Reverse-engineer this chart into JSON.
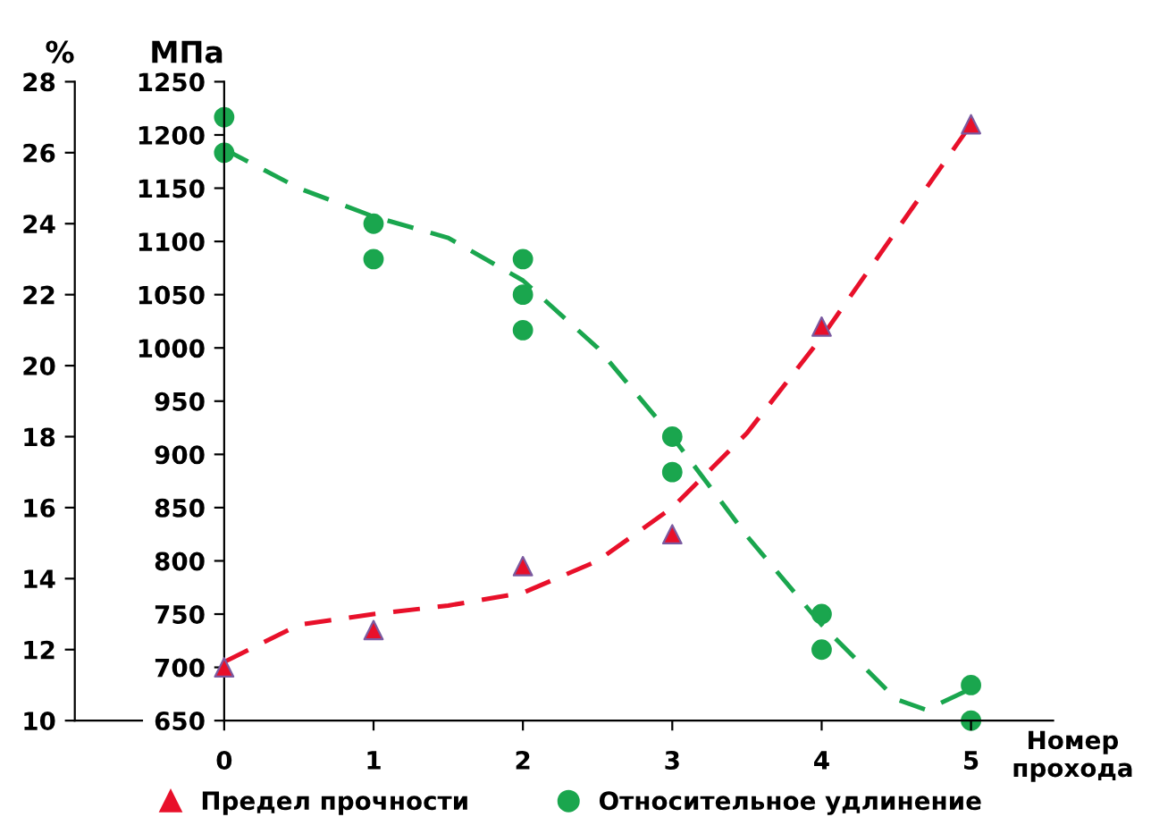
{
  "chart_data": {
    "type": "scatter",
    "xlabel": "Номер\nпрохода",
    "ylabel": "МПа",
    "y2label": "%",
    "xlim": [
      -1,
      5.55
    ],
    "xticks": [
      0,
      1,
      2,
      3,
      4,
      5
    ],
    "ylim": [
      650,
      1250
    ],
    "yticks": [
      650,
      700,
      750,
      800,
      850,
      900,
      950,
      1000,
      1050,
      1100,
      1150,
      1200,
      1250
    ],
    "y2lim": [
      10,
      28
    ],
    "y2ticks": [
      10,
      12,
      14,
      16,
      18,
      20,
      22,
      24,
      26,
      28
    ],
    "legend": "bottom",
    "grid": false,
    "series": [
      {
        "name": "Предел прочности",
        "marker": "triangle",
        "color": "#e8102a",
        "axis": "y",
        "x": [
          0,
          1,
          2,
          3,
          4,
          5
        ],
        "values": [
          700,
          735,
          795,
          825,
          1020,
          1210
        ]
      },
      {
        "name": "Относительное удлинение",
        "marker": "circle",
        "color": "#1aa64e",
        "axis": "y2",
        "x": [
          0,
          0,
          1,
          1,
          2,
          2,
          2,
          3,
          3,
          4,
          4,
          5,
          5
        ],
        "values": [
          27,
          26,
          24,
          23,
          23,
          22,
          21,
          18,
          17,
          13,
          12,
          11,
          10
        ]
      },
      {
        "type": "line",
        "line_style": "dashed",
        "color": "#e8102a",
        "axis": "y",
        "x": [
          0,
          0.5,
          1,
          1.5,
          2,
          2.5,
          3,
          3.5,
          4,
          4.5,
          5
        ],
        "values": [
          705,
          740,
          750,
          758,
          770,
          800,
          850,
          920,
          1010,
          1110,
          1210
        ]
      },
      {
        "type": "line",
        "line_style": "dashed",
        "color": "#1aa64e",
        "axis": "y2",
        "x": [
          0,
          0.5,
          1,
          1.5,
          2,
          2.5,
          3,
          3.5,
          4,
          4.5,
          4.7,
          5
        ],
        "values": [
          26.1,
          25,
          24.2,
          23.6,
          22.4,
          20.5,
          18,
          15.2,
          12.7,
          10.6,
          10.3,
          10.9
        ]
      }
    ]
  }
}
